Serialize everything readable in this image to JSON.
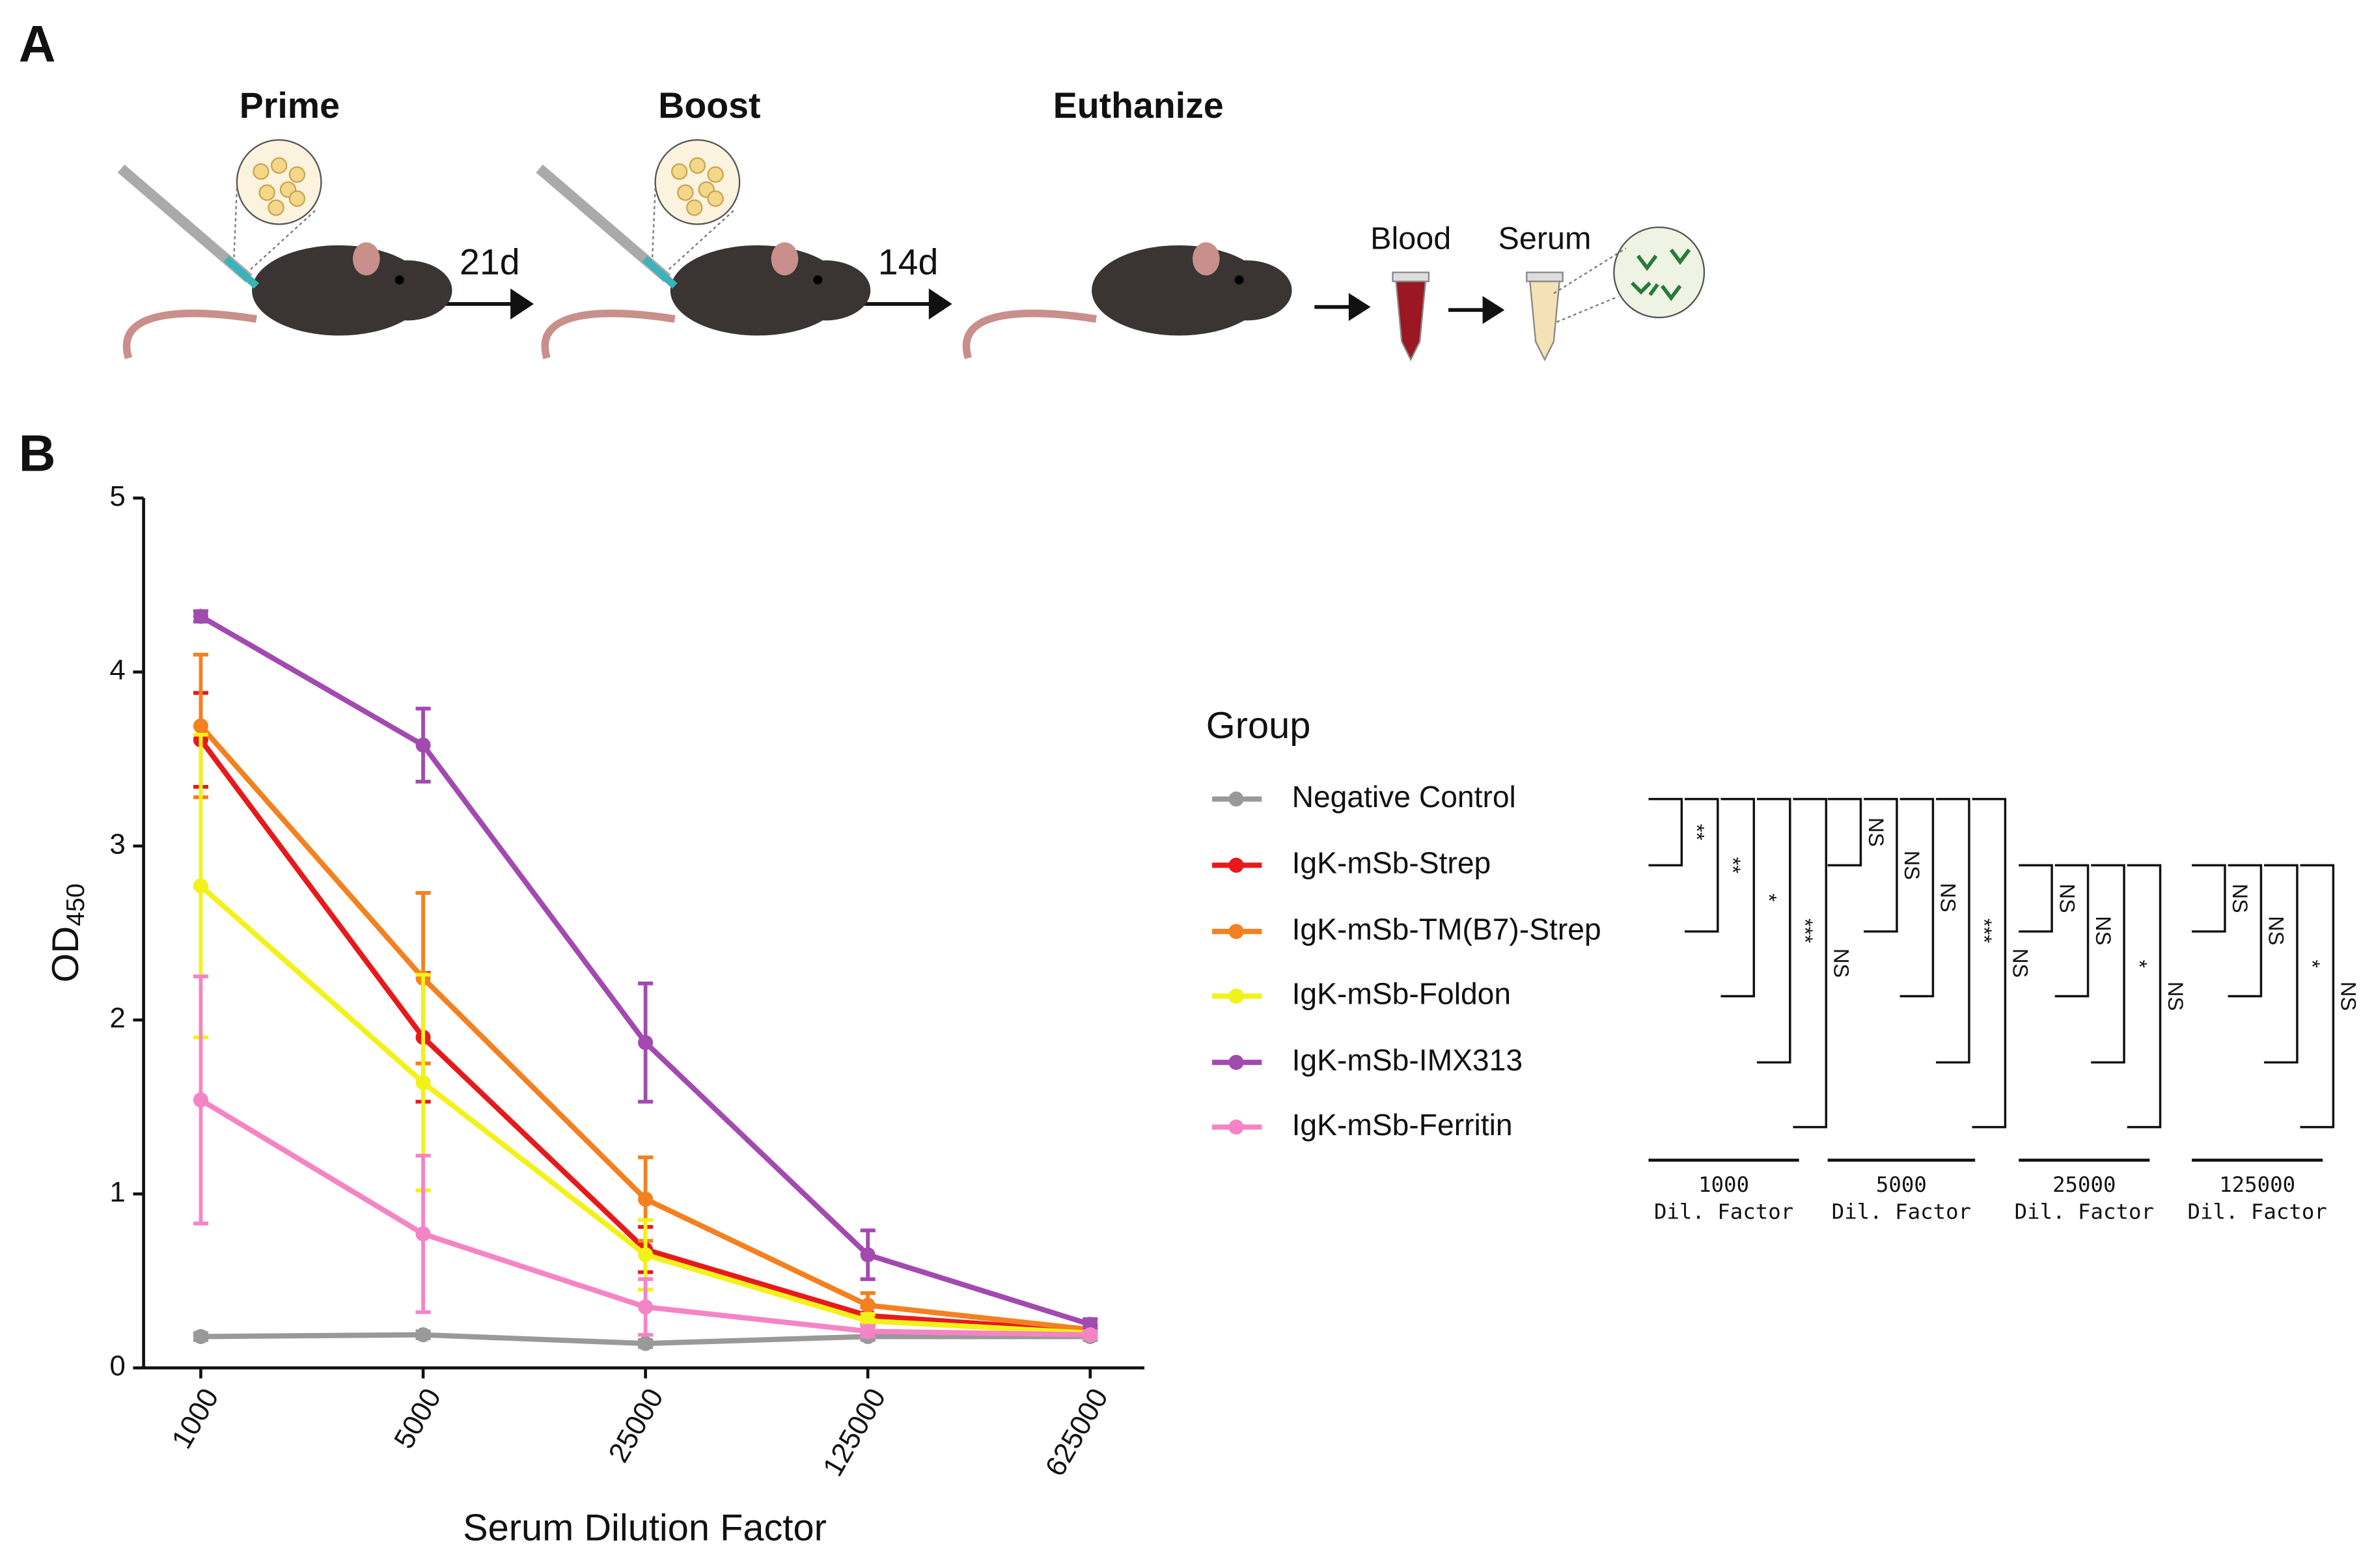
{
  "panels": {
    "a": "A",
    "b": "B"
  },
  "schedule": {
    "steps": [
      "Prime",
      "Boost",
      "Euthanize"
    ],
    "intervals": [
      "21d",
      "14d"
    ],
    "samples": [
      "Blood",
      "Serum"
    ]
  },
  "chart_data": {
    "type": "line",
    "xlabel": "Serum Dilution Factor",
    "ylabel": "OD",
    "ylabel_sub": "450",
    "categories": [
      "1000",
      "5000",
      "25000",
      "125000",
      "625000"
    ],
    "ylim": [
      0,
      5
    ],
    "yticks": [
      0,
      1,
      2,
      3,
      4,
      5
    ],
    "legend_title": "Group",
    "series": [
      {
        "name": "Negative Control",
        "color": "#999999",
        "values": [
          0.18,
          0.19,
          0.14,
          0.18,
          0.18
        ],
        "errors": [
          0.02,
          0.02,
          0.02,
          0.02,
          0.02
        ]
      },
      {
        "name": "IgK-mSb-Strep",
        "color": "#e8191b",
        "values": [
          3.61,
          1.9,
          0.68,
          0.3,
          0.21
        ],
        "errors": [
          0.27,
          0.37,
          0.13,
          0.05,
          0.02
        ]
      },
      {
        "name": "IgK-mSb-TM(B7)-Strep",
        "color": "#f4801f",
        "values": [
          3.69,
          2.24,
          0.97,
          0.36,
          0.22
        ],
        "errors": [
          0.41,
          0.49,
          0.24,
          0.07,
          0.02
        ]
      },
      {
        "name": "IgK-mSb-Foldon",
        "color": "#f2f21a",
        "values": [
          2.77,
          1.64,
          0.65,
          0.27,
          0.2
        ],
        "errors": [
          0.87,
          0.62,
          0.2,
          0.04,
          0.02
        ]
      },
      {
        "name": "IgK-mSb-IMX313",
        "color": "#a24ab0",
        "values": [
          4.32,
          3.58,
          1.87,
          0.65,
          0.25
        ],
        "errors": [
          0.03,
          0.21,
          0.34,
          0.14,
          0.03
        ]
      },
      {
        "name": "IgK-mSb-Ferritin",
        "color": "#f584c5",
        "values": [
          1.54,
          0.77,
          0.35,
          0.21,
          0.19
        ],
        "errors": [
          0.71,
          0.45,
          0.16,
          0.03,
          0.02
        ]
      }
    ]
  },
  "comparisons": [
    {
      "dilution": "1000",
      "label": "Dil. Factor",
      "brackets": [
        "**",
        "**",
        "*",
        "***",
        "NS"
      ]
    },
    {
      "dilution": "5000",
      "label": "Dil. Factor",
      "brackets": [
        "NS",
        "NS",
        "NS",
        "***",
        "NS"
      ]
    },
    {
      "dilution": "25000",
      "label": "Dil. Factor",
      "brackets": [
        "NS",
        "NS",
        "*",
        "NS"
      ]
    },
    {
      "dilution": "125000",
      "label": "Dil. Factor",
      "brackets": [
        "NS",
        "NS",
        "*",
        "NS"
      ]
    }
  ]
}
